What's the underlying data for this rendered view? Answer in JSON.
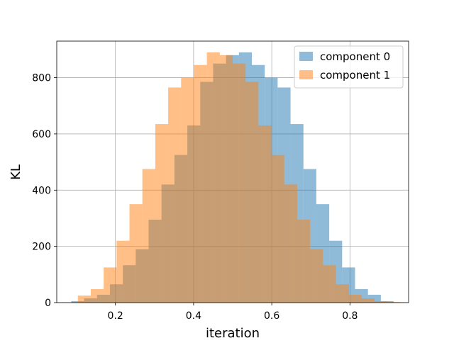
{
  "chart_data": {
    "type": "histogram",
    "xlabel": "iteration",
    "ylabel": "KL",
    "xlim": [
      0.05,
      0.95
    ],
    "ylim": [
      0,
      930
    ],
    "xticks": [
      0.2,
      0.4,
      0.6,
      0.8
    ],
    "xtick_labels": [
      "0.2",
      "0.4",
      "0.6",
      "0.8"
    ],
    "yticks": [
      0,
      200,
      400,
      600,
      800
    ],
    "ytick_labels": [
      "0",
      "200",
      "400",
      "600",
      "800"
    ],
    "grid": true,
    "legend_position": "upper-right",
    "bin_width": 0.033,
    "series": [
      {
        "name": "component 0",
        "color": "#1f77b4",
        "bin_starts": [
          0.087,
          0.12,
          0.153,
          0.186,
          0.219,
          0.252,
          0.285,
          0.318,
          0.351,
          0.384,
          0.417,
          0.45,
          0.483,
          0.516,
          0.549,
          0.582,
          0.615,
          0.648,
          0.681,
          0.714,
          0.747,
          0.78,
          0.813,
          0.846,
          0.879
        ],
        "counts": [
          5,
          15,
          28,
          65,
          133,
          190,
          295,
          420,
          525,
          630,
          785,
          850,
          880,
          890,
          845,
          800,
          765,
          635,
          475,
          350,
          220,
          125,
          48,
          28,
          5
        ]
      },
      {
        "name": "component 1",
        "color": "#ff7f0e",
        "bin_starts": [
          0.104,
          0.137,
          0.17,
          0.203,
          0.236,
          0.269,
          0.302,
          0.335,
          0.368,
          0.401,
          0.434,
          0.467,
          0.5,
          0.533,
          0.566,
          0.599,
          0.632,
          0.665,
          0.698,
          0.731,
          0.764,
          0.797,
          0.83,
          0.863,
          0.896
        ],
        "counts": [
          25,
          48,
          125,
          220,
          350,
          475,
          635,
          765,
          800,
          845,
          890,
          880,
          850,
          785,
          630,
          525,
          420,
          295,
          190,
          133,
          65,
          28,
          15,
          5,
          2
        ]
      }
    ]
  }
}
